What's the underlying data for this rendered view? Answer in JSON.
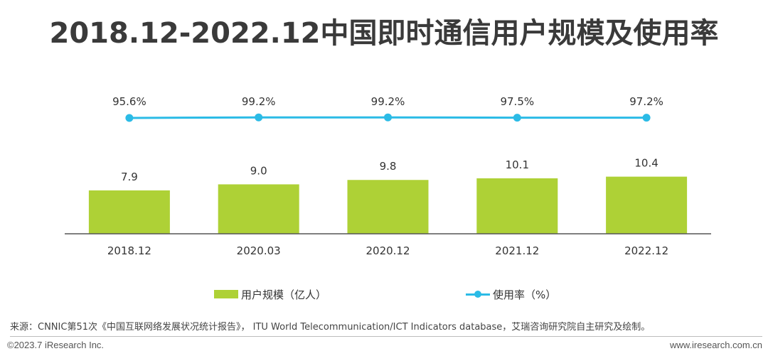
{
  "title": "2018.12-2022.12中国即时通信用户规模及使用率",
  "colors": {
    "bar": "#aed136",
    "line": "#2bbbe6",
    "axis": "#555555"
  },
  "chart_data": {
    "type": "bar",
    "categories": [
      "2018.12",
      "2020.03",
      "2020.12",
      "2021.12",
      "2022.12"
    ],
    "series": [
      {
        "name": "用户规模（亿人）",
        "type": "bar",
        "values": [
          7.9,
          9.0,
          9.8,
          10.1,
          10.4
        ],
        "labels": [
          "7.9",
          "9.0",
          "9.8",
          "10.1",
          "10.4"
        ]
      },
      {
        "name": "使用率（%）",
        "type": "line",
        "values": [
          95.6,
          99.2,
          99.2,
          97.5,
          97.2
        ],
        "labels": [
          "95.6%",
          "99.2%",
          "99.2%",
          "97.5%",
          "97.2%"
        ]
      }
    ],
    "legend_position": "bottom",
    "grid": false
  },
  "legend": {
    "bar_label": "用户规模（亿人）",
    "line_label": "使用率（%）"
  },
  "source": "来源：CNNIC第51次《中国互联网络发展状况统计报告》， ITU World Telecommunication/ICT Indicators database，艾瑞咨询研究院自主研究及绘制。",
  "footer": {
    "copyright": "©2023.7 iResearch Inc.",
    "website": "www.iresearch.com.cn"
  }
}
